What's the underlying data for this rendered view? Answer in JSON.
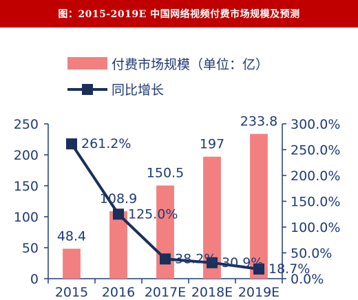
{
  "title": "图：2015-2019E 中国网络视频付费市场规模及预测",
  "colors": {
    "title_bg": "#c00000",
    "bar": "#f28080",
    "line": "#1a2f5a",
    "text": "#1e3a78",
    "axis": "#1e3a78"
  },
  "chart_data": {
    "type": "bar+line",
    "categories": [
      "2015",
      "2016",
      "2017E",
      "2018E",
      "2019E"
    ],
    "series": [
      {
        "name": "付费市场规模（单位：亿）",
        "type": "bar",
        "axis": "left",
        "values": [
          48.4,
          108.9,
          150.5,
          197,
          233.8
        ],
        "labels": [
          "48.4",
          "108.9",
          "150.5",
          "197",
          "233.8"
        ]
      },
      {
        "name": "同比增长",
        "type": "line",
        "axis": "right",
        "values": [
          261.2,
          125.0,
          38.2,
          30.9,
          18.7
        ],
        "labels": [
          "261.2%",
          "125.0%",
          "38.2%",
          "30.9%",
          "18.7%"
        ]
      }
    ],
    "left_axis": {
      "ylim": [
        0,
        250
      ],
      "ticks": [
        "0",
        "50",
        "100",
        "150",
        "200",
        "250"
      ]
    },
    "right_axis": {
      "ylim": [
        0,
        300
      ],
      "ticks": [
        "0.0%",
        "50.0%",
        "100.0%",
        "150.0%",
        "200.0%",
        "250.0%",
        "300.0%"
      ]
    },
    "legend_position": "top"
  }
}
